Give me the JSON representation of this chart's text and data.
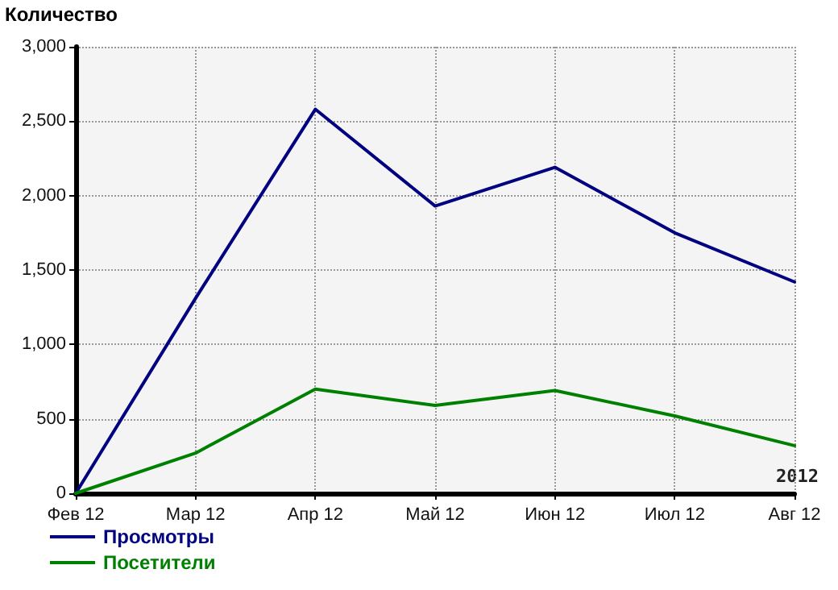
{
  "chart_data": {
    "type": "line",
    "ylabel": "Количество",
    "categories": [
      "Фев 12",
      "Мар 12",
      "Апр 12",
      "Май 12",
      "Июн 12",
      "Июл 12",
      "Авг 12"
    ],
    "series": [
      {
        "name": "Просмотры",
        "color": "#000080",
        "values": [
          0,
          1310,
          2580,
          1930,
          2190,
          1750,
          1420
        ]
      },
      {
        "name": "Посетители",
        "color": "#008000",
        "values": [
          0,
          270,
          700,
          590,
          690,
          520,
          320
        ]
      }
    ],
    "ylim": [
      0,
      3000
    ],
    "yticks": [
      {
        "value": 0,
        "label": "0"
      },
      {
        "value": 500,
        "label": "500"
      },
      {
        "value": 1000,
        "label": "1,000"
      },
      {
        "value": 1500,
        "label": "1,500"
      },
      {
        "value": 2000,
        "label": "2,000"
      },
      {
        "value": 2500,
        "label": "2,500"
      },
      {
        "value": 3000,
        "label": "3,000"
      }
    ],
    "annotations": [
      "2012"
    ],
    "grid": true,
    "legend": "bottom left",
    "marker": "none",
    "line_style": "solid"
  }
}
